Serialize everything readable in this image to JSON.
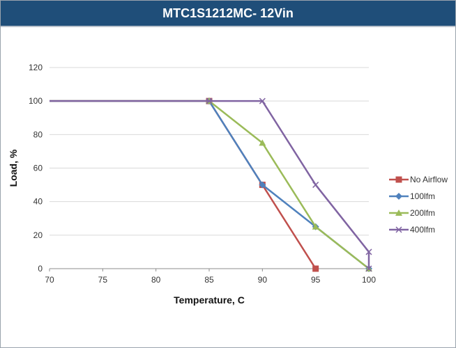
{
  "chart_data": {
    "type": "line",
    "title": "MTC1S1212MC- 12Vin",
    "xlabel": "Temperature, C",
    "ylabel": "Load, %",
    "xlim": [
      70,
      100
    ],
    "ylim": [
      0,
      120
    ],
    "xticks": [
      70,
      75,
      80,
      85,
      90,
      95,
      100
    ],
    "yticks": [
      0,
      20,
      40,
      60,
      80,
      100,
      120
    ],
    "grid": true,
    "legend_position": "right",
    "series": [
      {
        "name": "No Airflow",
        "color": "#c0504d",
        "marker": "square",
        "x": [
          70,
          85,
          90,
          95
        ],
        "y": [
          100,
          100,
          50,
          0
        ]
      },
      {
        "name": "100lfm",
        "color": "#4f81bd",
        "marker": "diamond",
        "x": [
          70,
          85,
          90,
          95,
          100
        ],
        "y": [
          100,
          100,
          50,
          25,
          0
        ]
      },
      {
        "name": "200lfm",
        "color": "#9bbb59",
        "marker": "triangle",
        "x": [
          70,
          85,
          90,
          95,
          100
        ],
        "y": [
          100,
          100,
          75,
          25,
          0
        ]
      },
      {
        "name": "400lfm",
        "color": "#8064a2",
        "marker": "x",
        "x": [
          70,
          85,
          90,
          95,
          100,
          100
        ],
        "y": [
          100,
          100,
          100,
          50,
          10,
          0
        ]
      }
    ]
  }
}
